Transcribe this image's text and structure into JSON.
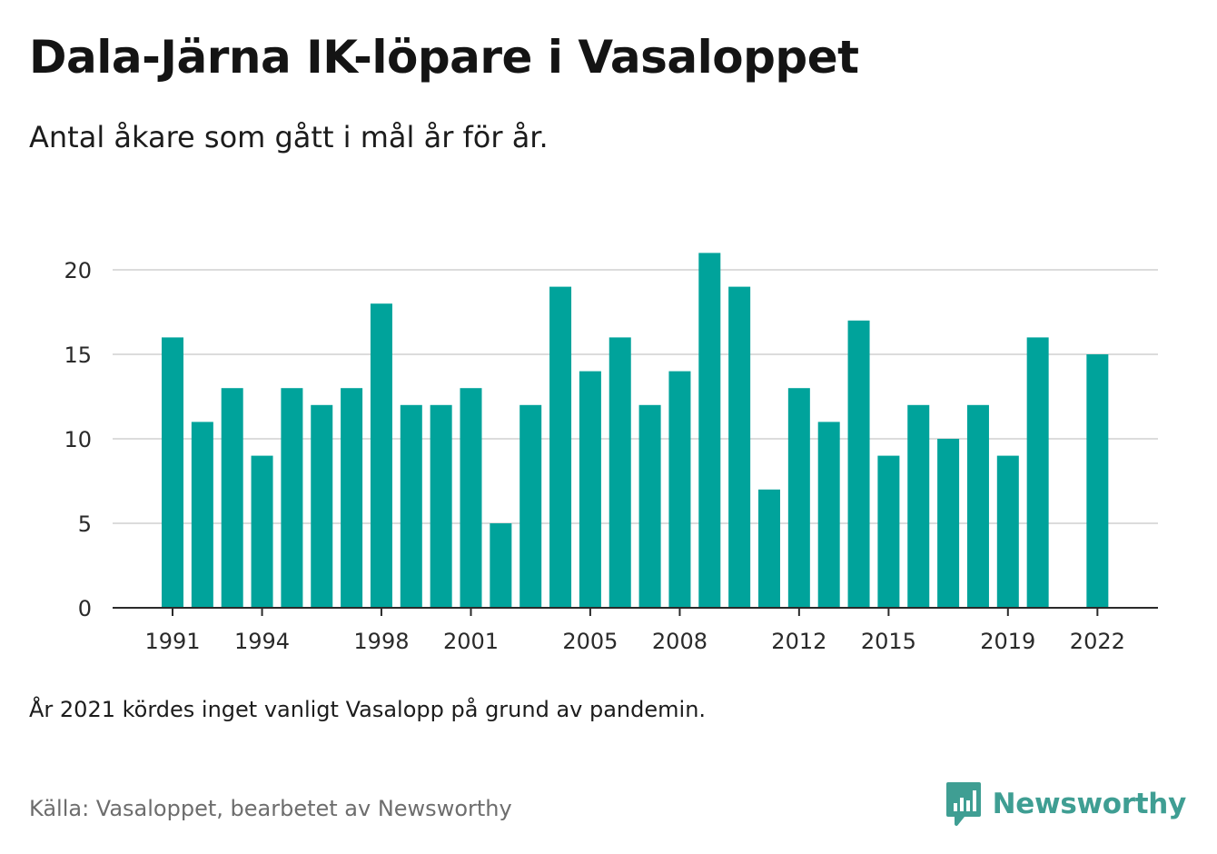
{
  "title": "Dala-Järna IK-löpare i Vasaloppet",
  "subtitle": "Antal åkare som gått i mål år för år.",
  "note": "År 2021 kördes inget vanligt Vasalopp på grund av pandemin.",
  "source": "Källa: Vasaloppet, bearbetet av Newsworthy",
  "brand": {
    "name": "Newsworthy",
    "icon": "newsworthy-logo-icon",
    "color": "#3f9e93"
  },
  "chart_data": {
    "type": "bar",
    "x": [
      1991,
      1992,
      1993,
      1994,
      1995,
      1996,
      1997,
      1998,
      1999,
      2000,
      2001,
      2002,
      2003,
      2004,
      2005,
      2006,
      2007,
      2008,
      2009,
      2010,
      2011,
      2012,
      2013,
      2014,
      2015,
      2016,
      2017,
      2018,
      2019,
      2020,
      2021,
      2022
    ],
    "values": [
      16,
      11,
      13,
      9,
      13,
      12,
      13,
      18,
      12,
      12,
      13,
      5,
      12,
      19,
      14,
      16,
      12,
      14,
      21,
      19,
      7,
      13,
      11,
      17,
      9,
      12,
      10,
      12,
      9,
      16,
      null,
      15
    ],
    "x_ticks": [
      1991,
      1994,
      1998,
      2001,
      2005,
      2008,
      2012,
      2015,
      2019,
      2022
    ],
    "y_ticks": [
      0,
      5,
      10,
      15,
      20
    ],
    "ylim": [
      0,
      21.5
    ],
    "bar_color": "#00a39b",
    "grid": true,
    "xlabel": "",
    "ylabel": ""
  }
}
